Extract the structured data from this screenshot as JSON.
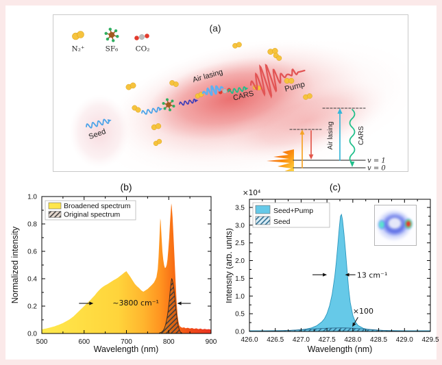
{
  "colors": {
    "background_pink": "#fbe9e9",
    "panel_border": "#c9c9c9",
    "beam_red": "#e86060",
    "seed_blue": "#4aa3e8",
    "cars_green": "#1fbf8a",
    "pump_red": "#e25555",
    "air_lasing_cyan": "#35b6d9",
    "n2_yellow": "#f6c33e",
    "sf6_brown": "#9c5a1e",
    "sf6_green": "#2fae60",
    "co2_red": "#e23b2e",
    "co2_gray": "#bcbcbc",
    "seed_pump_fill": "#66c9e8"
  },
  "panel_a": {
    "label": "(a)",
    "molecules": [
      {
        "id": "n2plus",
        "label": "N₂⁺"
      },
      {
        "id": "sf6",
        "label": "SF₆"
      },
      {
        "id": "co2",
        "label": "CO₂"
      }
    ],
    "beam_labels": {
      "seed": "Seed",
      "air_lasing": "Air lasing",
      "cars": "CARS",
      "pump": "Pump"
    },
    "energy_levels": {
      "air_lasing": "Air lasing",
      "cars": "CARS",
      "v1": "v = 1",
      "v0": "v = 0"
    }
  },
  "chart_data": [
    {
      "id": "b",
      "type": "area",
      "title": "(b)",
      "xlabel": "Wavelength (nm)",
      "ylabel": "Normalized intensity",
      "xlim": [
        500,
        900
      ],
      "ylim": [
        0,
        1.0
      ],
      "xticks": [
        500,
        600,
        700,
        800,
        900
      ],
      "xtick_labels": [
        "500",
        "600",
        "700",
        "800",
        "900"
      ],
      "yticks": [
        0,
        0.2,
        0.4,
        0.6,
        0.8,
        1.0
      ],
      "ytick_labels": [
        "0.0",
        "0.2",
        "0.4",
        "0.6",
        "0.8",
        "1.0"
      ],
      "xminor": 50,
      "yminor": 0.1,
      "legend_position": "top-left",
      "grid": false,
      "series": [
        {
          "name": "Broadened spectrum",
          "fill_type": "gradient",
          "stops": [
            [
              0,
              "#ffe94d"
            ],
            [
              0.45,
              "#ffd43b"
            ],
            [
              0.6,
              "#ffb52e"
            ],
            [
              0.7,
              "#ff9420"
            ],
            [
              0.78,
              "#f86d14"
            ],
            [
              0.88,
              "#ef4a17"
            ],
            [
              1,
              "#e93323"
            ]
          ],
          "points": [
            [
              500,
              0.03
            ],
            [
              505,
              0.034
            ],
            [
              510,
              0.036
            ],
            [
              515,
              0.04
            ],
            [
              520,
              0.044
            ],
            [
              525,
              0.048
            ],
            [
              530,
              0.052
            ],
            [
              535,
              0.058
            ],
            [
              540,
              0.063
            ],
            [
              545,
              0.07
            ],
            [
              550,
              0.076
            ],
            [
              555,
              0.085
            ],
            [
              560,
              0.093
            ],
            [
              565,
              0.102
            ],
            [
              570,
              0.113
            ],
            [
              575,
              0.125
            ],
            [
              580,
              0.14
            ],
            [
              585,
              0.155
            ],
            [
              590,
              0.17
            ],
            [
              595,
              0.185
            ],
            [
              600,
              0.2
            ],
            [
              605,
              0.215
            ],
            [
              610,
              0.23
            ],
            [
              615,
              0.245
            ],
            [
              620,
              0.262
            ],
            [
              625,
              0.278
            ],
            [
              630,
              0.298
            ],
            [
              635,
              0.315
            ],
            [
              640,
              0.33
            ],
            [
              645,
              0.342
            ],
            [
              650,
              0.352
            ],
            [
              655,
              0.36
            ],
            [
              660,
              0.37
            ],
            [
              665,
              0.38
            ],
            [
              670,
              0.39
            ],
            [
              675,
              0.398
            ],
            [
              680,
              0.408
            ],
            [
              685,
              0.42
            ],
            [
              690,
              0.432
            ],
            [
              695,
              0.445
            ],
            [
              700,
              0.455
            ],
            [
              703,
              0.44
            ],
            [
              706,
              0.428
            ],
            [
              710,
              0.41
            ],
            [
              715,
              0.385
            ],
            [
              720,
              0.362
            ],
            [
              725,
              0.345
            ],
            [
              730,
              0.332
            ],
            [
              735,
              0.315
            ],
            [
              740,
              0.305
            ],
            [
              745,
              0.315
            ],
            [
              750,
              0.325
            ],
            [
              755,
              0.34
            ],
            [
              760,
              0.355
            ],
            [
              765,
              0.372
            ],
            [
              768,
              0.39
            ],
            [
              771,
              0.412
            ],
            [
              774,
              0.47
            ],
            [
              776,
              0.56
            ],
            [
              778,
              0.7
            ],
            [
              780,
              0.84
            ],
            [
              781,
              0.82
            ],
            [
              783,
              0.7
            ],
            [
              785,
              0.6
            ],
            [
              787,
              0.54
            ],
            [
              789,
              0.498
            ],
            [
              791,
              0.478
            ],
            [
              793,
              0.482
            ],
            [
              795,
              0.5
            ],
            [
              797,
              0.54
            ],
            [
              799,
              0.61
            ],
            [
              801,
              0.7
            ],
            [
              803,
              0.81
            ],
            [
              805,
              0.9
            ],
            [
              806,
              0.95
            ],
            [
              807,
              0.93
            ],
            [
              809,
              0.85
            ],
            [
              811,
              0.73
            ],
            [
              813,
              0.59
            ],
            [
              815,
              0.46
            ],
            [
              817,
              0.33
            ],
            [
              819,
              0.21
            ],
            [
              821,
              0.13
            ],
            [
              823,
              0.085
            ],
            [
              825,
              0.06
            ],
            [
              828,
              0.048
            ],
            [
              832,
              0.042
            ],
            [
              836,
              0.045
            ],
            [
              840,
              0.038
            ],
            [
              845,
              0.042
            ],
            [
              850,
              0.036
            ],
            [
              855,
              0.04
            ],
            [
              860,
              0.034
            ],
            [
              865,
              0.038
            ],
            [
              870,
              0.032
            ],
            [
              875,
              0.036
            ],
            [
              880,
              0.03
            ],
            [
              885,
              0.034
            ],
            [
              890,
              0.03
            ],
            [
              895,
              0.032
            ],
            [
              900,
              0.028
            ]
          ]
        },
        {
          "name": "Original spectrum",
          "fill_type": "hatch",
          "line_color": "#3f3f3f",
          "under": "rgba(120,60,15,0.22)",
          "outline": "#3a2a1a",
          "points": [
            [
              778,
              0.004
            ],
            [
              783,
              0.01
            ],
            [
              787,
              0.022
            ],
            [
              790,
              0.04
            ],
            [
              793,
              0.07
            ],
            [
              796,
              0.115
            ],
            [
              799,
              0.175
            ],
            [
              801,
              0.235
            ],
            [
              803,
              0.3
            ],
            [
              805,
              0.355
            ],
            [
              806,
              0.385
            ],
            [
              807,
              0.4
            ],
            [
              808,
              0.395
            ],
            [
              810,
              0.37
            ],
            [
              812,
              0.33
            ],
            [
              814,
              0.275
            ],
            [
              816,
              0.21
            ],
            [
              818,
              0.15
            ],
            [
              820,
              0.1
            ],
            [
              822,
              0.062
            ],
            [
              824,
              0.036
            ],
            [
              826,
              0.02
            ],
            [
              828,
              0.01
            ],
            [
              831,
              0.004
            ]
          ]
        }
      ],
      "annotations": [
        {
          "text": "~3800 cm⁻¹",
          "x": 722,
          "y": 0.205,
          "anchor": "middle",
          "fs": 11
        }
      ],
      "arrows": [
        [
          588,
          0.22,
          622,
          0.22
        ],
        [
          852,
          0.22,
          820,
          0.22
        ]
      ]
    },
    {
      "id": "c",
      "type": "area",
      "title": "(c)",
      "xlabel": "Wavelength (nm)",
      "ylabel": "Intensity (arb. units)",
      "offset_text": "×10⁴",
      "xlim": [
        426.0,
        429.5
      ],
      "ylim": [
        0,
        3.73
      ],
      "xticks": [
        426.0,
        426.5,
        427.0,
        427.5,
        428.0,
        428.5,
        429.0,
        429.5
      ],
      "xtick_labels": [
        "426.0",
        "426.5",
        "427.0",
        "427.5",
        "428.0",
        "428.5",
        "429.0",
        "429.5"
      ],
      "yticks": [
        0,
        0.5,
        1.0,
        1.5,
        2.0,
        2.5,
        3.0,
        3.5
      ],
      "ytick_labels": [
        "0.0",
        "0.5",
        "1.0",
        "1.5",
        "2.0",
        "2.5",
        "3.0",
        "3.5"
      ],
      "xminor": 0.25,
      "yminor": 0.25,
      "legend_position": "top-left",
      "grid": false,
      "series": [
        {
          "name": "Seed+Pump",
          "fill_type": "solid",
          "color": "#66c9e8",
          "outline": "#2a96bd",
          "points": [
            [
              426.0,
              0.02
            ],
            [
              426.3,
              0.02
            ],
            [
              426.6,
              0.025
            ],
            [
              426.8,
              0.03
            ],
            [
              427.0,
              0.05
            ],
            [
              427.1,
              0.07
            ],
            [
              427.2,
              0.1
            ],
            [
              427.3,
              0.16
            ],
            [
              427.4,
              0.27
            ],
            [
              427.45,
              0.36
            ],
            [
              427.5,
              0.5
            ],
            [
              427.55,
              0.72
            ],
            [
              427.6,
              1.05
            ],
            [
              427.65,
              1.55
            ],
            [
              427.68,
              1.95
            ],
            [
              427.71,
              2.45
            ],
            [
              427.74,
              2.95
            ],
            [
              427.76,
              3.25
            ],
            [
              427.78,
              3.3
            ],
            [
              427.8,
              3.15
            ],
            [
              427.83,
              2.75
            ],
            [
              427.86,
              2.25
            ],
            [
              427.89,
              1.7
            ],
            [
              427.92,
              1.2
            ],
            [
              427.95,
              0.82
            ],
            [
              428.0,
              0.45
            ],
            [
              428.05,
              0.27
            ],
            [
              428.1,
              0.17
            ],
            [
              428.2,
              0.09
            ],
            [
              428.3,
              0.055
            ],
            [
              428.4,
              0.04
            ],
            [
              428.6,
              0.03
            ],
            [
              428.8,
              0.025
            ],
            [
              429.0,
              0.02
            ],
            [
              429.5,
              0.02
            ]
          ]
        },
        {
          "name": "Seed",
          "fill_type": "hatch",
          "line_color": "#2e6f92",
          "under": "rgba(102,180,215,0.25)",
          "outline": "#2e6f92",
          "points": [
            [
              426.0,
              0.004
            ],
            [
              426.3,
              0.008
            ],
            [
              426.6,
              0.018
            ],
            [
              426.8,
              0.032
            ],
            [
              427.0,
              0.048
            ],
            [
              427.2,
              0.068
            ],
            [
              427.4,
              0.085
            ],
            [
              427.6,
              0.098
            ],
            [
              427.8,
              0.102
            ],
            [
              428.0,
              0.092
            ],
            [
              428.2,
              0.072
            ],
            [
              428.4,
              0.048
            ],
            [
              428.6,
              0.028
            ],
            [
              428.8,
              0.014
            ],
            [
              429.0,
              0.007
            ],
            [
              429.3,
              0.004
            ],
            [
              429.5,
              0.003
            ]
          ]
        }
      ],
      "annotations": [
        {
          "text": "13 cm⁻¹",
          "x": 428.08,
          "y": 1.52,
          "anchor": "start",
          "fs": 11
        },
        {
          "text": "×100",
          "x": 428.2,
          "y": 0.5,
          "anchor": "middle",
          "fs": 11
        }
      ],
      "arrows": [
        [
          427.22,
          1.6,
          427.5,
          1.6
        ],
        [
          428.05,
          1.6,
          427.85,
          1.6
        ],
        [
          428.1,
          0.4,
          427.99,
          0.13
        ]
      ]
    }
  ],
  "inset": {
    "name": "beam-profile"
  }
}
